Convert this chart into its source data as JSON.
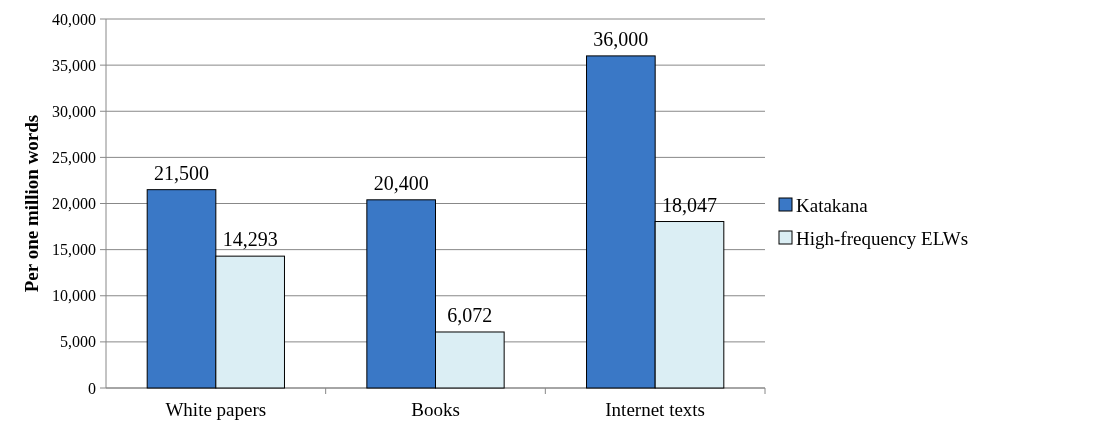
{
  "chart_data": {
    "type": "bar",
    "ylabel": "Per one million words",
    "categories": [
      "White papers",
      "Books",
      "Internet texts"
    ],
    "series": [
      {
        "name": "Katakana",
        "color": "#3a78c6",
        "values": [
          21500,
          20400,
          36000
        ],
        "value_labels": [
          "21,500",
          "20,400",
          "36,000"
        ]
      },
      {
        "name": "High-frequency ELWs",
        "color": "#dbeef4",
        "values": [
          14293,
          6072,
          18047
        ],
        "value_labels": [
          "14,293",
          "6,072",
          "18,047"
        ]
      }
    ],
    "ylim": [
      0,
      40000
    ],
    "yticks": [
      {
        "value": 0,
        "label": "0"
      },
      {
        "value": 5000,
        "label": "5,000"
      },
      {
        "value": 10000,
        "label": "10,000"
      },
      {
        "value": 15000,
        "label": "15,000"
      },
      {
        "value": 20000,
        "label": "20,000"
      },
      {
        "value": 25000,
        "label": "25,000"
      },
      {
        "value": 30000,
        "label": "30,000"
      },
      {
        "value": 35000,
        "label": "35,000"
      },
      {
        "value": 40000,
        "label": "40,000"
      }
    ],
    "grid": "y",
    "legend": "right"
  }
}
